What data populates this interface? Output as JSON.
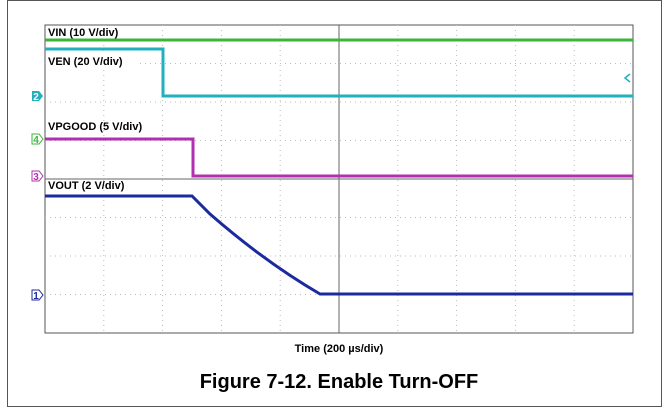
{
  "scope": {
    "traces": [
      {
        "label": "VIN (10 V/div)"
      },
      {
        "label": "VEN (20 V/div)",
        "marker": "2"
      },
      {
        "label": "VPGOOD (5 V/div)",
        "marker": "4"
      },
      {
        "label": "VOUT (2 V/div)",
        "marker": "1"
      }
    ],
    "extra_marker": "3",
    "x_label": "Time (200 µs/div)"
  },
  "figure": {
    "caption": "Figure 7-12. Enable Turn-OFF"
  }
}
